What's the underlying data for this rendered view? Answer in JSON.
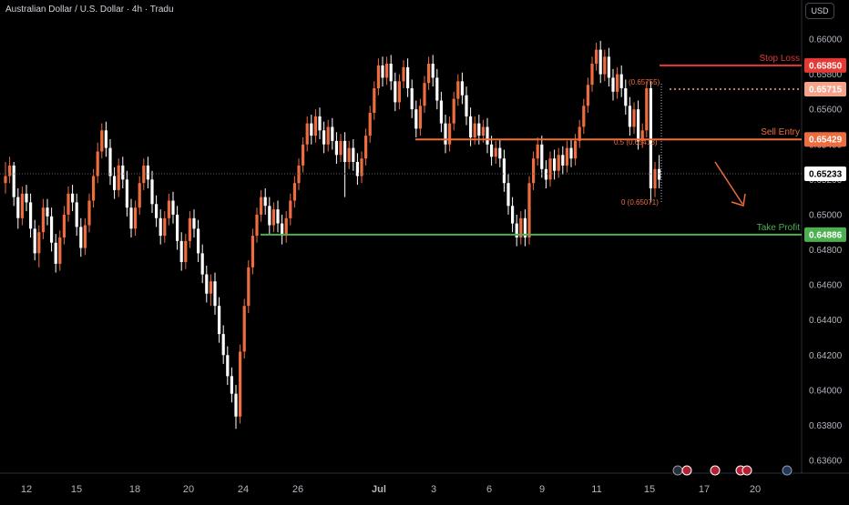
{
  "header": {
    "title": "Australian Dollar / U.S. Dollar · 4h · Tradu",
    "currency": "USD"
  },
  "colors": {
    "bull": "#ef6c3e",
    "bear": "#ffffff",
    "stop": "#e53935",
    "entry": "#ef6c3e",
    "tp": "#4caf50",
    "grid_line": "#5d606b"
  },
  "chart_data": {
    "type": "candlestick",
    "symbol": "AUDUSD",
    "timeframe": "4h",
    "x_ticks": [
      "12",
      "15",
      "18",
      "20",
      "24",
      "26",
      "Jul",
      "3",
      "6",
      "9",
      "11",
      "15",
      "17",
      "20"
    ],
    "y_ticks": [
      "0.66000",
      "0.65800",
      "0.65600",
      "0.65400",
      "0.65200",
      "0.65000",
      "0.64800",
      "0.64600",
      "0.64400",
      "0.64200",
      "0.64000",
      "0.63800",
      "0.63600"
    ],
    "ylim": [
      0.6355,
      0.6615
    ],
    "levels": [
      {
        "name": "Stop Loss",
        "value": "0.65850",
        "color": "#e53935"
      },
      {
        "name": "Sell Entry",
        "value": "0.65429",
        "color": "#ef6c3e"
      },
      {
        "name": "Take Profit",
        "value": "0.64886",
        "color": "#4caf50"
      }
    ],
    "price_badges": [
      {
        "value": "0.65715",
        "color": "#f6a38a"
      },
      {
        "value": "0.65233",
        "color": "#ffffff"
      }
    ],
    "fib_labels": [
      "(0.65755)",
      "0.5 (0.65413)",
      "0 (0.65071)"
    ],
    "candles": [
      [
        0.6518,
        0.6522,
        0.6512,
        0.653
      ],
      [
        0.6522,
        0.6528,
        0.6518,
        0.6533
      ],
      [
        0.6528,
        0.651,
        0.6505,
        0.653
      ],
      [
        0.651,
        0.6498,
        0.6492,
        0.6515
      ],
      [
        0.6498,
        0.6512,
        0.6494,
        0.6516
      ],
      [
        0.6512,
        0.6507,
        0.6502,
        0.6517
      ],
      [
        0.6507,
        0.6492,
        0.6487,
        0.6512
      ],
      [
        0.6492,
        0.6478,
        0.6474,
        0.6497
      ],
      [
        0.6478,
        0.649,
        0.647,
        0.6494
      ],
      [
        0.649,
        0.6504,
        0.6486,
        0.6509
      ],
      [
        0.6504,
        0.6499,
        0.6494,
        0.6509
      ],
      [
        0.6499,
        0.6484,
        0.6479,
        0.6504
      ],
      [
        0.6484,
        0.6472,
        0.6467,
        0.6489
      ],
      [
        0.6472,
        0.6487,
        0.6468,
        0.6491
      ],
      [
        0.6487,
        0.65,
        0.6483,
        0.6505
      ],
      [
        0.65,
        0.6512,
        0.6496,
        0.6516
      ],
      [
        0.6512,
        0.6507,
        0.6502,
        0.6517
      ],
      [
        0.6507,
        0.6493,
        0.6488,
        0.6512
      ],
      [
        0.6493,
        0.6481,
        0.6476,
        0.6498
      ],
      [
        0.6481,
        0.6494,
        0.6477,
        0.6498
      ],
      [
        0.6494,
        0.6508,
        0.649,
        0.6512
      ],
      [
        0.6508,
        0.6522,
        0.6504,
        0.6526
      ],
      [
        0.6522,
        0.6536,
        0.6518,
        0.6541
      ],
      [
        0.6536,
        0.6548,
        0.6532,
        0.6552
      ],
      [
        0.6548,
        0.6538,
        0.6533,
        0.6553
      ],
      [
        0.6538,
        0.6522,
        0.6517,
        0.6543
      ],
      [
        0.6522,
        0.6514,
        0.6509,
        0.6527
      ],
      [
        0.6514,
        0.6528,
        0.651,
        0.6532
      ],
      [
        0.6528,
        0.652,
        0.6515,
        0.6533
      ],
      [
        0.652,
        0.6504,
        0.6499,
        0.6525
      ],
      [
        0.6504,
        0.6492,
        0.6487,
        0.6509
      ],
      [
        0.6492,
        0.6504,
        0.6488,
        0.6508
      ],
      [
        0.6504,
        0.6518,
        0.65,
        0.6522
      ],
      [
        0.6518,
        0.6528,
        0.6514,
        0.6532
      ],
      [
        0.6528,
        0.652,
        0.6515,
        0.6533
      ],
      [
        0.652,
        0.6506,
        0.6501,
        0.6525
      ],
      [
        0.6506,
        0.6498,
        0.6493,
        0.6511
      ],
      [
        0.6498,
        0.6488,
        0.6483,
        0.6503
      ],
      [
        0.6488,
        0.6498,
        0.6484,
        0.6502
      ],
      [
        0.6498,
        0.6508,
        0.6494,
        0.6512
      ],
      [
        0.6508,
        0.65,
        0.6495,
        0.6513
      ],
      [
        0.65,
        0.6485,
        0.648,
        0.6505
      ],
      [
        0.6485,
        0.6473,
        0.6468,
        0.649
      ],
      [
        0.6473,
        0.6485,
        0.6469,
        0.6489
      ],
      [
        0.6485,
        0.6498,
        0.6481,
        0.6502
      ],
      [
        0.6498,
        0.6492,
        0.6487,
        0.6503
      ],
      [
        0.6492,
        0.6478,
        0.6473,
        0.6497
      ],
      [
        0.6478,
        0.6466,
        0.6461,
        0.6483
      ],
      [
        0.6466,
        0.6455,
        0.645,
        0.6471
      ],
      [
        0.6455,
        0.6462,
        0.6448,
        0.6466
      ],
      [
        0.6462,
        0.6448,
        0.6443,
        0.6467
      ],
      [
        0.6448,
        0.6432,
        0.6427,
        0.6453
      ],
      [
        0.6432,
        0.642,
        0.6415,
        0.6437
      ],
      [
        0.642,
        0.6408,
        0.6403,
        0.6425
      ],
      [
        0.6408,
        0.6398,
        0.6393,
        0.6413
      ],
      [
        0.6398,
        0.6385,
        0.6378,
        0.6403
      ],
      [
        0.6385,
        0.6422,
        0.6381,
        0.6426
      ],
      [
        0.6422,
        0.6448,
        0.6418,
        0.6452
      ],
      [
        0.6448,
        0.647,
        0.6444,
        0.6474
      ],
      [
        0.647,
        0.6488,
        0.6466,
        0.6492
      ],
      [
        0.6488,
        0.65,
        0.6484,
        0.6504
      ],
      [
        0.65,
        0.651,
        0.6496,
        0.6514
      ],
      [
        0.651,
        0.6505,
        0.65,
        0.6515
      ],
      [
        0.6505,
        0.6494,
        0.6489,
        0.651
      ],
      [
        0.6494,
        0.6503,
        0.649,
        0.6507
      ],
      [
        0.6503,
        0.6495,
        0.649,
        0.6508
      ],
      [
        0.6495,
        0.6488,
        0.6483,
        0.65
      ],
      [
        0.6488,
        0.6498,
        0.6484,
        0.6502
      ],
      [
        0.6498,
        0.6508,
        0.6494,
        0.6512
      ],
      [
        0.6508,
        0.6518,
        0.6504,
        0.6522
      ],
      [
        0.6518,
        0.6528,
        0.6514,
        0.6532
      ],
      [
        0.6528,
        0.654,
        0.6524,
        0.6544
      ],
      [
        0.654,
        0.6552,
        0.6536,
        0.6556
      ],
      [
        0.6552,
        0.6545,
        0.654,
        0.6557
      ],
      [
        0.6545,
        0.6556,
        0.6541,
        0.656
      ],
      [
        0.6556,
        0.6548,
        0.6543,
        0.6561
      ],
      [
        0.6548,
        0.654,
        0.6535,
        0.6553
      ],
      [
        0.654,
        0.655,
        0.6536,
        0.6554
      ],
      [
        0.655,
        0.6542,
        0.6537,
        0.6555
      ],
      [
        0.6542,
        0.6534,
        0.6529,
        0.6547
      ],
      [
        0.6534,
        0.6542,
        0.653,
        0.6546
      ],
      [
        0.6542,
        0.653,
        0.651,
        0.6547
      ],
      [
        0.653,
        0.6538,
        0.6526,
        0.6542
      ],
      [
        0.6538,
        0.653,
        0.6525,
        0.6543
      ],
      [
        0.653,
        0.6522,
        0.6517,
        0.6535
      ],
      [
        0.6522,
        0.6532,
        0.6518,
        0.6536
      ],
      [
        0.6532,
        0.6545,
        0.6528,
        0.6549
      ],
      [
        0.6545,
        0.6558,
        0.6541,
        0.6562
      ],
      [
        0.6558,
        0.6572,
        0.6554,
        0.6576
      ],
      [
        0.6572,
        0.6585,
        0.6568,
        0.6589
      ],
      [
        0.6585,
        0.6578,
        0.6573,
        0.659
      ],
      [
        0.6578,
        0.6586,
        0.6574,
        0.659
      ],
      [
        0.6586,
        0.6576,
        0.6571,
        0.6591
      ],
      [
        0.6576,
        0.6564,
        0.6559,
        0.6581
      ],
      [
        0.6564,
        0.6576,
        0.656,
        0.658
      ],
      [
        0.6576,
        0.6584,
        0.6572,
        0.6588
      ],
      [
        0.6584,
        0.6572,
        0.6567,
        0.6589
      ],
      [
        0.6572,
        0.656,
        0.6555,
        0.6577
      ],
      [
        0.656,
        0.6549,
        0.6544,
        0.6565
      ],
      [
        0.6549,
        0.6562,
        0.6545,
        0.6566
      ],
      [
        0.6562,
        0.6575,
        0.6558,
        0.6579
      ],
      [
        0.6575,
        0.6586,
        0.6571,
        0.659
      ],
      [
        0.6586,
        0.6578,
        0.6573,
        0.6591
      ],
      [
        0.6578,
        0.6565,
        0.656,
        0.6583
      ],
      [
        0.6565,
        0.6552,
        0.6547,
        0.657
      ],
      [
        0.6552,
        0.654,
        0.6535,
        0.6557
      ],
      [
        0.654,
        0.6552,
        0.6536,
        0.6556
      ],
      [
        0.6552,
        0.6566,
        0.6548,
        0.657
      ],
      [
        0.6566,
        0.6576,
        0.6562,
        0.658
      ],
      [
        0.6576,
        0.6568,
        0.6563,
        0.6581
      ],
      [
        0.6568,
        0.6556,
        0.6551,
        0.6573
      ],
      [
        0.6556,
        0.6544,
        0.6539,
        0.6561
      ],
      [
        0.6544,
        0.6552,
        0.654,
        0.6556
      ],
      [
        0.6552,
        0.6545,
        0.654,
        0.6557
      ],
      [
        0.6545,
        0.655,
        0.6541,
        0.6554
      ],
      [
        0.655,
        0.654,
        0.6535,
        0.6555
      ],
      [
        0.654,
        0.6533,
        0.6528,
        0.6545
      ],
      [
        0.6533,
        0.6538,
        0.6529,
        0.6542
      ],
      [
        0.6538,
        0.6532,
        0.6527,
        0.6543
      ],
      [
        0.6532,
        0.6518,
        0.6513,
        0.6537
      ],
      [
        0.6518,
        0.6505,
        0.65,
        0.6523
      ],
      [
        0.6505,
        0.6495,
        0.649,
        0.651
      ],
      [
        0.6495,
        0.6487,
        0.6482,
        0.65
      ],
      [
        0.6487,
        0.6498,
        0.6483,
        0.6502
      ],
      [
        0.6498,
        0.6487,
        0.6482,
        0.6503
      ],
      [
        0.6487,
        0.6518,
        0.6483,
        0.6522
      ],
      [
        0.6518,
        0.6532,
        0.6514,
        0.6536
      ],
      [
        0.6532,
        0.654,
        0.6528,
        0.6544
      ],
      [
        0.654,
        0.6526,
        0.6521,
        0.6545
      ],
      [
        0.6526,
        0.652,
        0.6515,
        0.6531
      ],
      [
        0.652,
        0.6532,
        0.6516,
        0.6536
      ],
      [
        0.6532,
        0.6525,
        0.652,
        0.6537
      ],
      [
        0.6525,
        0.6534,
        0.6521,
        0.6538
      ],
      [
        0.6534,
        0.6528,
        0.6523,
        0.6539
      ],
      [
        0.6528,
        0.6538,
        0.6524,
        0.6542
      ],
      [
        0.6538,
        0.6532,
        0.6527,
        0.6543
      ],
      [
        0.6532,
        0.6542,
        0.6528,
        0.6546
      ],
      [
        0.6542,
        0.655,
        0.6538,
        0.6554
      ],
      [
        0.655,
        0.6562,
        0.6546,
        0.6566
      ],
      [
        0.6562,
        0.6574,
        0.6558,
        0.6578
      ],
      [
        0.6574,
        0.6586,
        0.657,
        0.659
      ],
      [
        0.6586,
        0.6594,
        0.6582,
        0.6598
      ],
      [
        0.6594,
        0.658,
        0.6575,
        0.6599
      ],
      [
        0.658,
        0.659,
        0.6576,
        0.6594
      ],
      [
        0.659,
        0.6578,
        0.6573,
        0.6595
      ],
      [
        0.6578,
        0.657,
        0.6565,
        0.6583
      ],
      [
        0.657,
        0.658,
        0.6566,
        0.6584
      ],
      [
        0.658,
        0.6572,
        0.6567,
        0.6585
      ],
      [
        0.6572,
        0.6562,
        0.6557,
        0.6577
      ],
      [
        0.6562,
        0.655,
        0.6545,
        0.6567
      ],
      [
        0.655,
        0.656,
        0.6546,
        0.6564
      ],
      [
        0.656,
        0.6542,
        0.6537,
        0.6565
      ],
      [
        0.6542,
        0.6548,
        0.6538,
        0.6552
      ],
      [
        0.6548,
        0.6572,
        0.6544,
        0.6576
      ],
      [
        0.6572,
        0.6515,
        0.6507,
        0.6576
      ],
      [
        0.6515,
        0.6526,
        0.651,
        0.653
      ],
      [
        0.6526,
        0.652,
        0.6515,
        0.6534
      ]
    ]
  }
}
